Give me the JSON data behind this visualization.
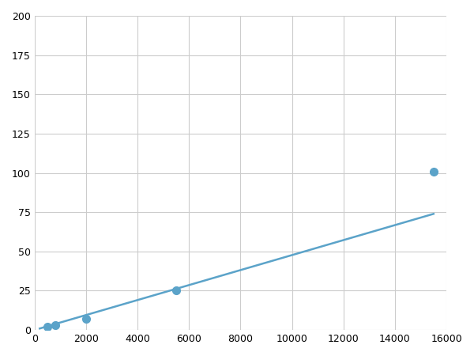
{
  "x": [
    200,
    500,
    800,
    2000,
    5500,
    15500
  ],
  "y": [
    1.5,
    2.0,
    3.0,
    7.0,
    25.0,
    101.0
  ],
  "marker_x": [
    500,
    800,
    2000,
    5500,
    15500
  ],
  "marker_y": [
    2.0,
    3.0,
    7.0,
    25.0,
    101.0
  ],
  "line_color": "#5ba3c9",
  "marker_color": "#5ba3c9",
  "marker_size": 7,
  "linewidth": 1.8,
  "xlim": [
    0,
    16000
  ],
  "ylim": [
    0,
    200
  ],
  "xticks": [
    0,
    2000,
    4000,
    6000,
    8000,
    10000,
    12000,
    14000,
    16000
  ],
  "yticks": [
    0,
    25,
    50,
    75,
    100,
    125,
    150,
    175,
    200
  ],
  "grid_color": "#cccccc",
  "background_color": "#ffffff",
  "figsize": [
    6.0,
    4.5
  ],
  "dpi": 100
}
